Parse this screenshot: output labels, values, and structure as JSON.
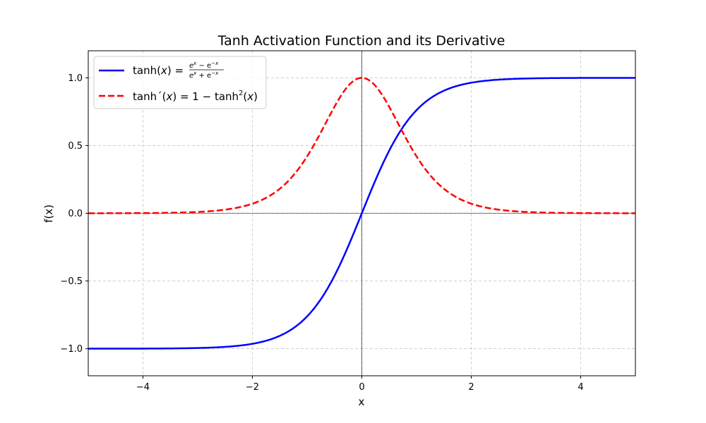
{
  "chart_data": {
    "type": "line",
    "title": "Tanh Activation Function and its Derivative",
    "xlabel": "x",
    "ylabel": "f(x)",
    "xlim": [
      -5,
      5
    ],
    "ylim": [
      -1.2,
      1.2
    ],
    "xticks": [
      -4,
      -2,
      0,
      2,
      4
    ],
    "xtick_labels": [
      "−4",
      "−2",
      "0",
      "2",
      "4"
    ],
    "yticks": [
      -1.0,
      -0.5,
      0.0,
      0.5,
      1.0
    ],
    "ytick_labels": [
      "−1.0",
      "−0.5",
      "0.0",
      "0.5",
      "1.0"
    ],
    "grid": true,
    "grid_style": "dashed",
    "legend_position": "top-left",
    "reference_lines": {
      "x": 0,
      "y": 0
    },
    "series": [
      {
        "name": "tanh(x) = (e^x − e^−x)/(e^x + e^−x)",
        "function": "tanh",
        "color": "#0000ff",
        "line_style": "solid"
      },
      {
        "name": "tanh′(x) = 1 − tanh²(x)",
        "function": "tanh_derivative",
        "color": "#ff0000",
        "line_style": "dashed"
      }
    ],
    "samples": {
      "x": [
        -5,
        -4,
        -3,
        -2,
        -1,
        -0.5,
        0,
        0.5,
        1,
        2,
        3,
        4,
        5
      ],
      "tanh": [
        -1.0,
        -0.999,
        -0.995,
        -0.964,
        -0.762,
        -0.462,
        0.0,
        0.462,
        0.762,
        0.964,
        0.995,
        0.999,
        1.0
      ],
      "tanh_derivative": [
        0.0002,
        0.0013,
        0.0099,
        0.0707,
        0.42,
        0.7864,
        1.0,
        0.7864,
        0.42,
        0.0707,
        0.0099,
        0.0013,
        0.0002
      ]
    },
    "legend": {
      "tanh_prefix": "tanh(",
      "tanh_var": "x",
      "tanh_mid": ") =",
      "tanh_num": "e",
      "tanh_num_sup1": "x",
      "tanh_num_minus": " − e",
      "tanh_num_sup2": "−x",
      "tanh_den": "e",
      "tanh_den_sup1": "x",
      "tanh_den_plus": " + e",
      "tanh_den_sup2": "−x",
      "deriv_prefix": "tanh",
      "deriv_prime": "´",
      "deriv_mid1": "(",
      "deriv_var": "x",
      "deriv_mid2": ") = 1 − tanh",
      "deriv_sup": "2",
      "deriv_end1": "(",
      "deriv_var2": "x",
      "deriv_end2": ")"
    }
  }
}
